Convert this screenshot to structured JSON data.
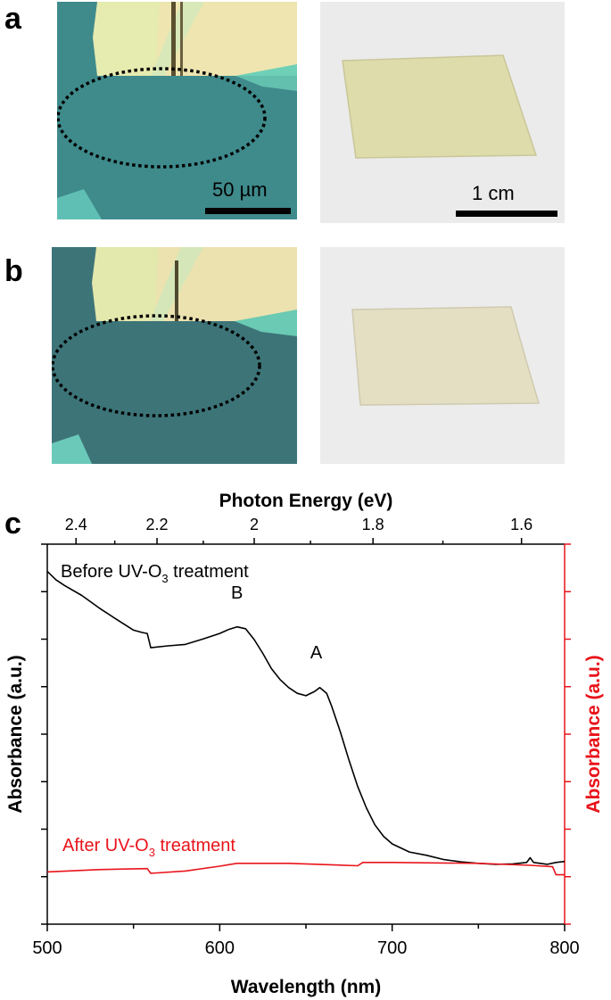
{
  "panels": {
    "a": {
      "label": "a",
      "micro_scale": "50 µm",
      "photo_scale": "1 cm"
    },
    "b": {
      "label": "b"
    },
    "c": {
      "label": "c"
    }
  },
  "chart_data": {
    "type": "line",
    "xlabel": "Wavelength (nm)",
    "ylabel_left": "Absorbance (a.u.)",
    "ylabel_right": "Absorbance (a.u.)",
    "top_axis_label": "Photon Energy (eV)",
    "xlim": [
      500,
      800
    ],
    "ylim": [
      0,
      8
    ],
    "x_ticks": [
      "500",
      "600",
      "700",
      "800"
    ],
    "x_tick_values": [
      500,
      600,
      700,
      800
    ],
    "x_minor_ticks": [
      550,
      650,
      750
    ],
    "top_ticks": [
      "2.4",
      "2.2",
      "2",
      "1.8",
      "1.6"
    ],
    "top_tick_values": [
      2.4,
      2.2,
      2.0,
      1.8,
      1.6
    ],
    "top_minor_ticks": [
      2.3,
      2.1,
      1.9,
      1.7
    ],
    "top_axis_relation": "E (eV) = 1240 / wavelength (nm)",
    "y_tick_labels": false,
    "grid": false,
    "colors": {
      "before": "#000000",
      "after": "#e8141b",
      "right_axis": "#e8141b"
    },
    "series": [
      {
        "name": "Before UV-O3 treatment",
        "label_prefix": "Before UV-O",
        "label_sub": "3",
        "label_suffix": " treatment",
        "x": [
          500,
          505,
          510,
          520,
          530,
          540,
          550,
          555,
          558,
          560,
          570,
          580,
          590,
          600,
          605,
          610,
          615,
          620,
          625,
          630,
          635,
          640,
          645,
          650,
          655,
          658,
          662,
          665,
          670,
          675,
          680,
          685,
          690,
          695,
          700,
          710,
          720,
          730,
          740,
          750,
          760,
          770,
          778,
          780,
          782,
          790,
          795,
          800
        ],
        "y": [
          7.43,
          7.25,
          7.13,
          6.92,
          6.66,
          6.42,
          6.19,
          6.14,
          6.12,
          5.82,
          5.86,
          5.89,
          6.0,
          6.12,
          6.2,
          6.26,
          6.22,
          5.99,
          5.7,
          5.38,
          5.15,
          4.98,
          4.86,
          4.81,
          4.9,
          4.98,
          4.86,
          4.58,
          4.04,
          3.45,
          2.9,
          2.45,
          2.09,
          1.85,
          1.69,
          1.52,
          1.45,
          1.36,
          1.31,
          1.28,
          1.26,
          1.27,
          1.3,
          1.4,
          1.3,
          1.26,
          1.3,
          1.32
        ]
      },
      {
        "name": "After UV-O3 treatment",
        "label_prefix": "After UV-O",
        "label_sub": "3",
        "label_suffix": " treatment",
        "x": [
          500,
          530,
          558,
          560,
          580,
          600,
          610,
          640,
          680,
          683,
          700,
          750,
          780,
          793,
          795,
          800
        ],
        "y": [
          1.1,
          1.15,
          1.17,
          1.07,
          1.12,
          1.22,
          1.28,
          1.28,
          1.23,
          1.3,
          1.3,
          1.28,
          1.24,
          1.21,
          1.04,
          1.04
        ]
      }
    ],
    "annotations": [
      {
        "text": "B",
        "x": 610,
        "y": 6.85
      },
      {
        "text": "A",
        "x": 656,
        "y": 5.6
      }
    ]
  }
}
